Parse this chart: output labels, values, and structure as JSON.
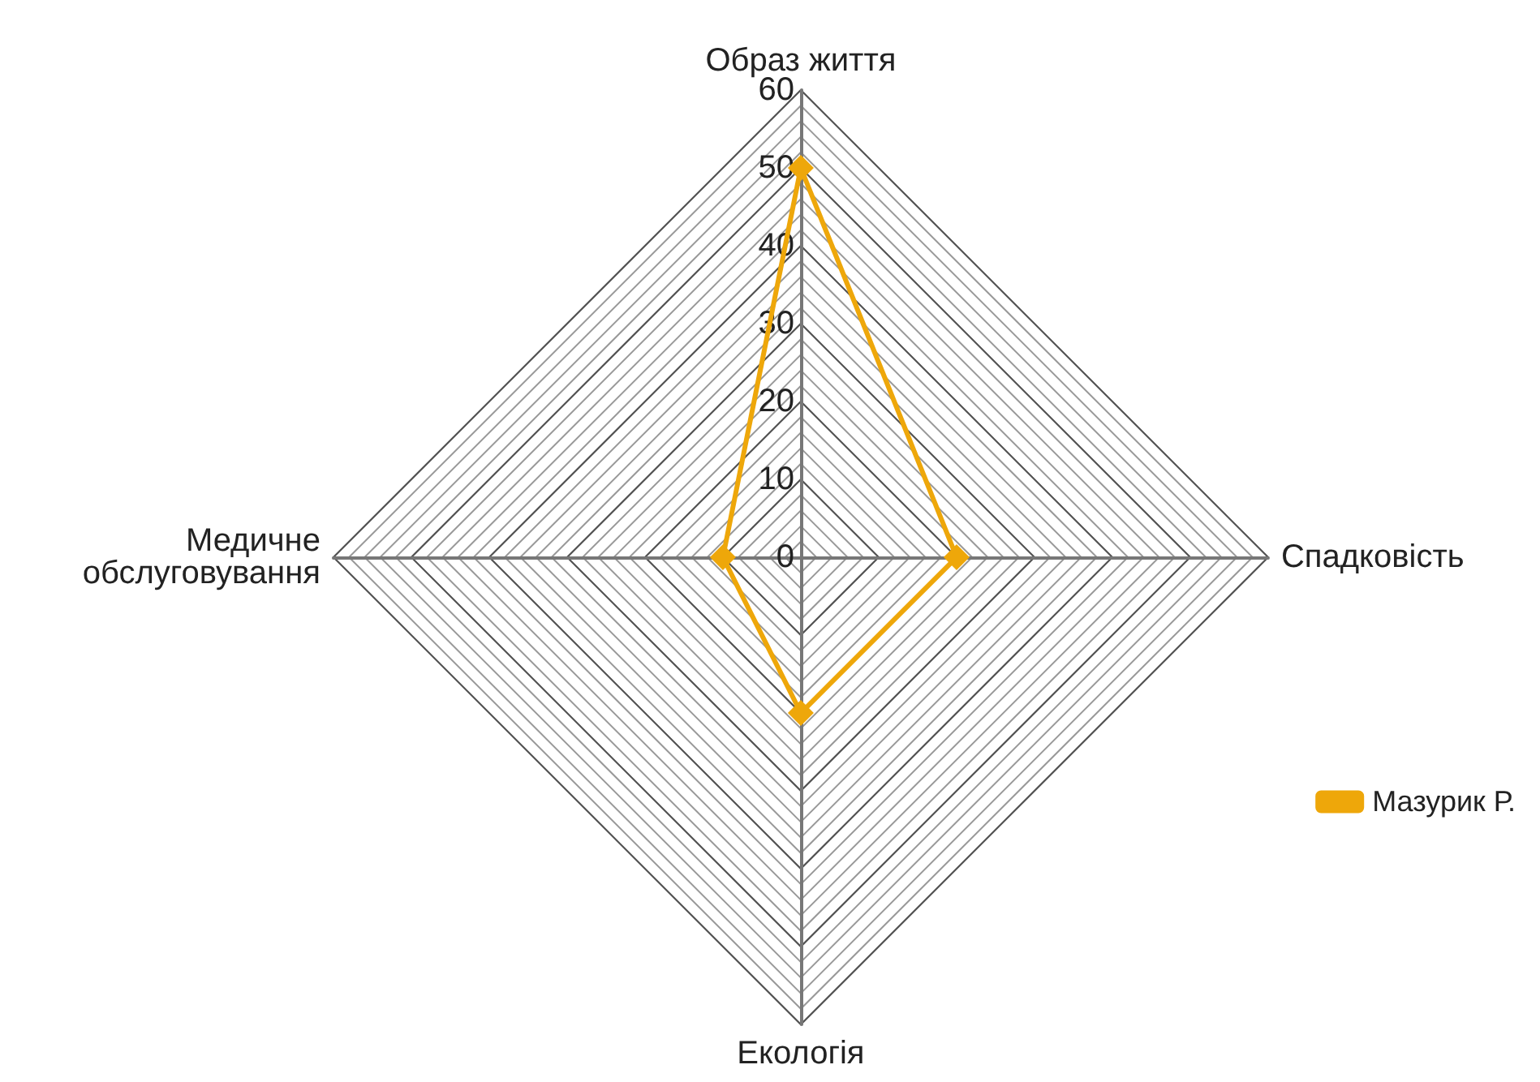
{
  "chart_data": {
    "type": "radar",
    "categories": [
      "Образ життя",
      "Спадковість",
      "Екологія",
      "Медичне обслуговування"
    ],
    "series": [
      {
        "name": "Мазурик Р.",
        "color": "#eea70a",
        "values": [
          50,
          20,
          20,
          10
        ]
      }
    ],
    "ylim": [
      0,
      60
    ],
    "yticks": [
      0,
      10,
      20,
      30,
      40,
      50,
      60
    ],
    "legend": "right",
    "marker": "diamond",
    "grid": true
  }
}
